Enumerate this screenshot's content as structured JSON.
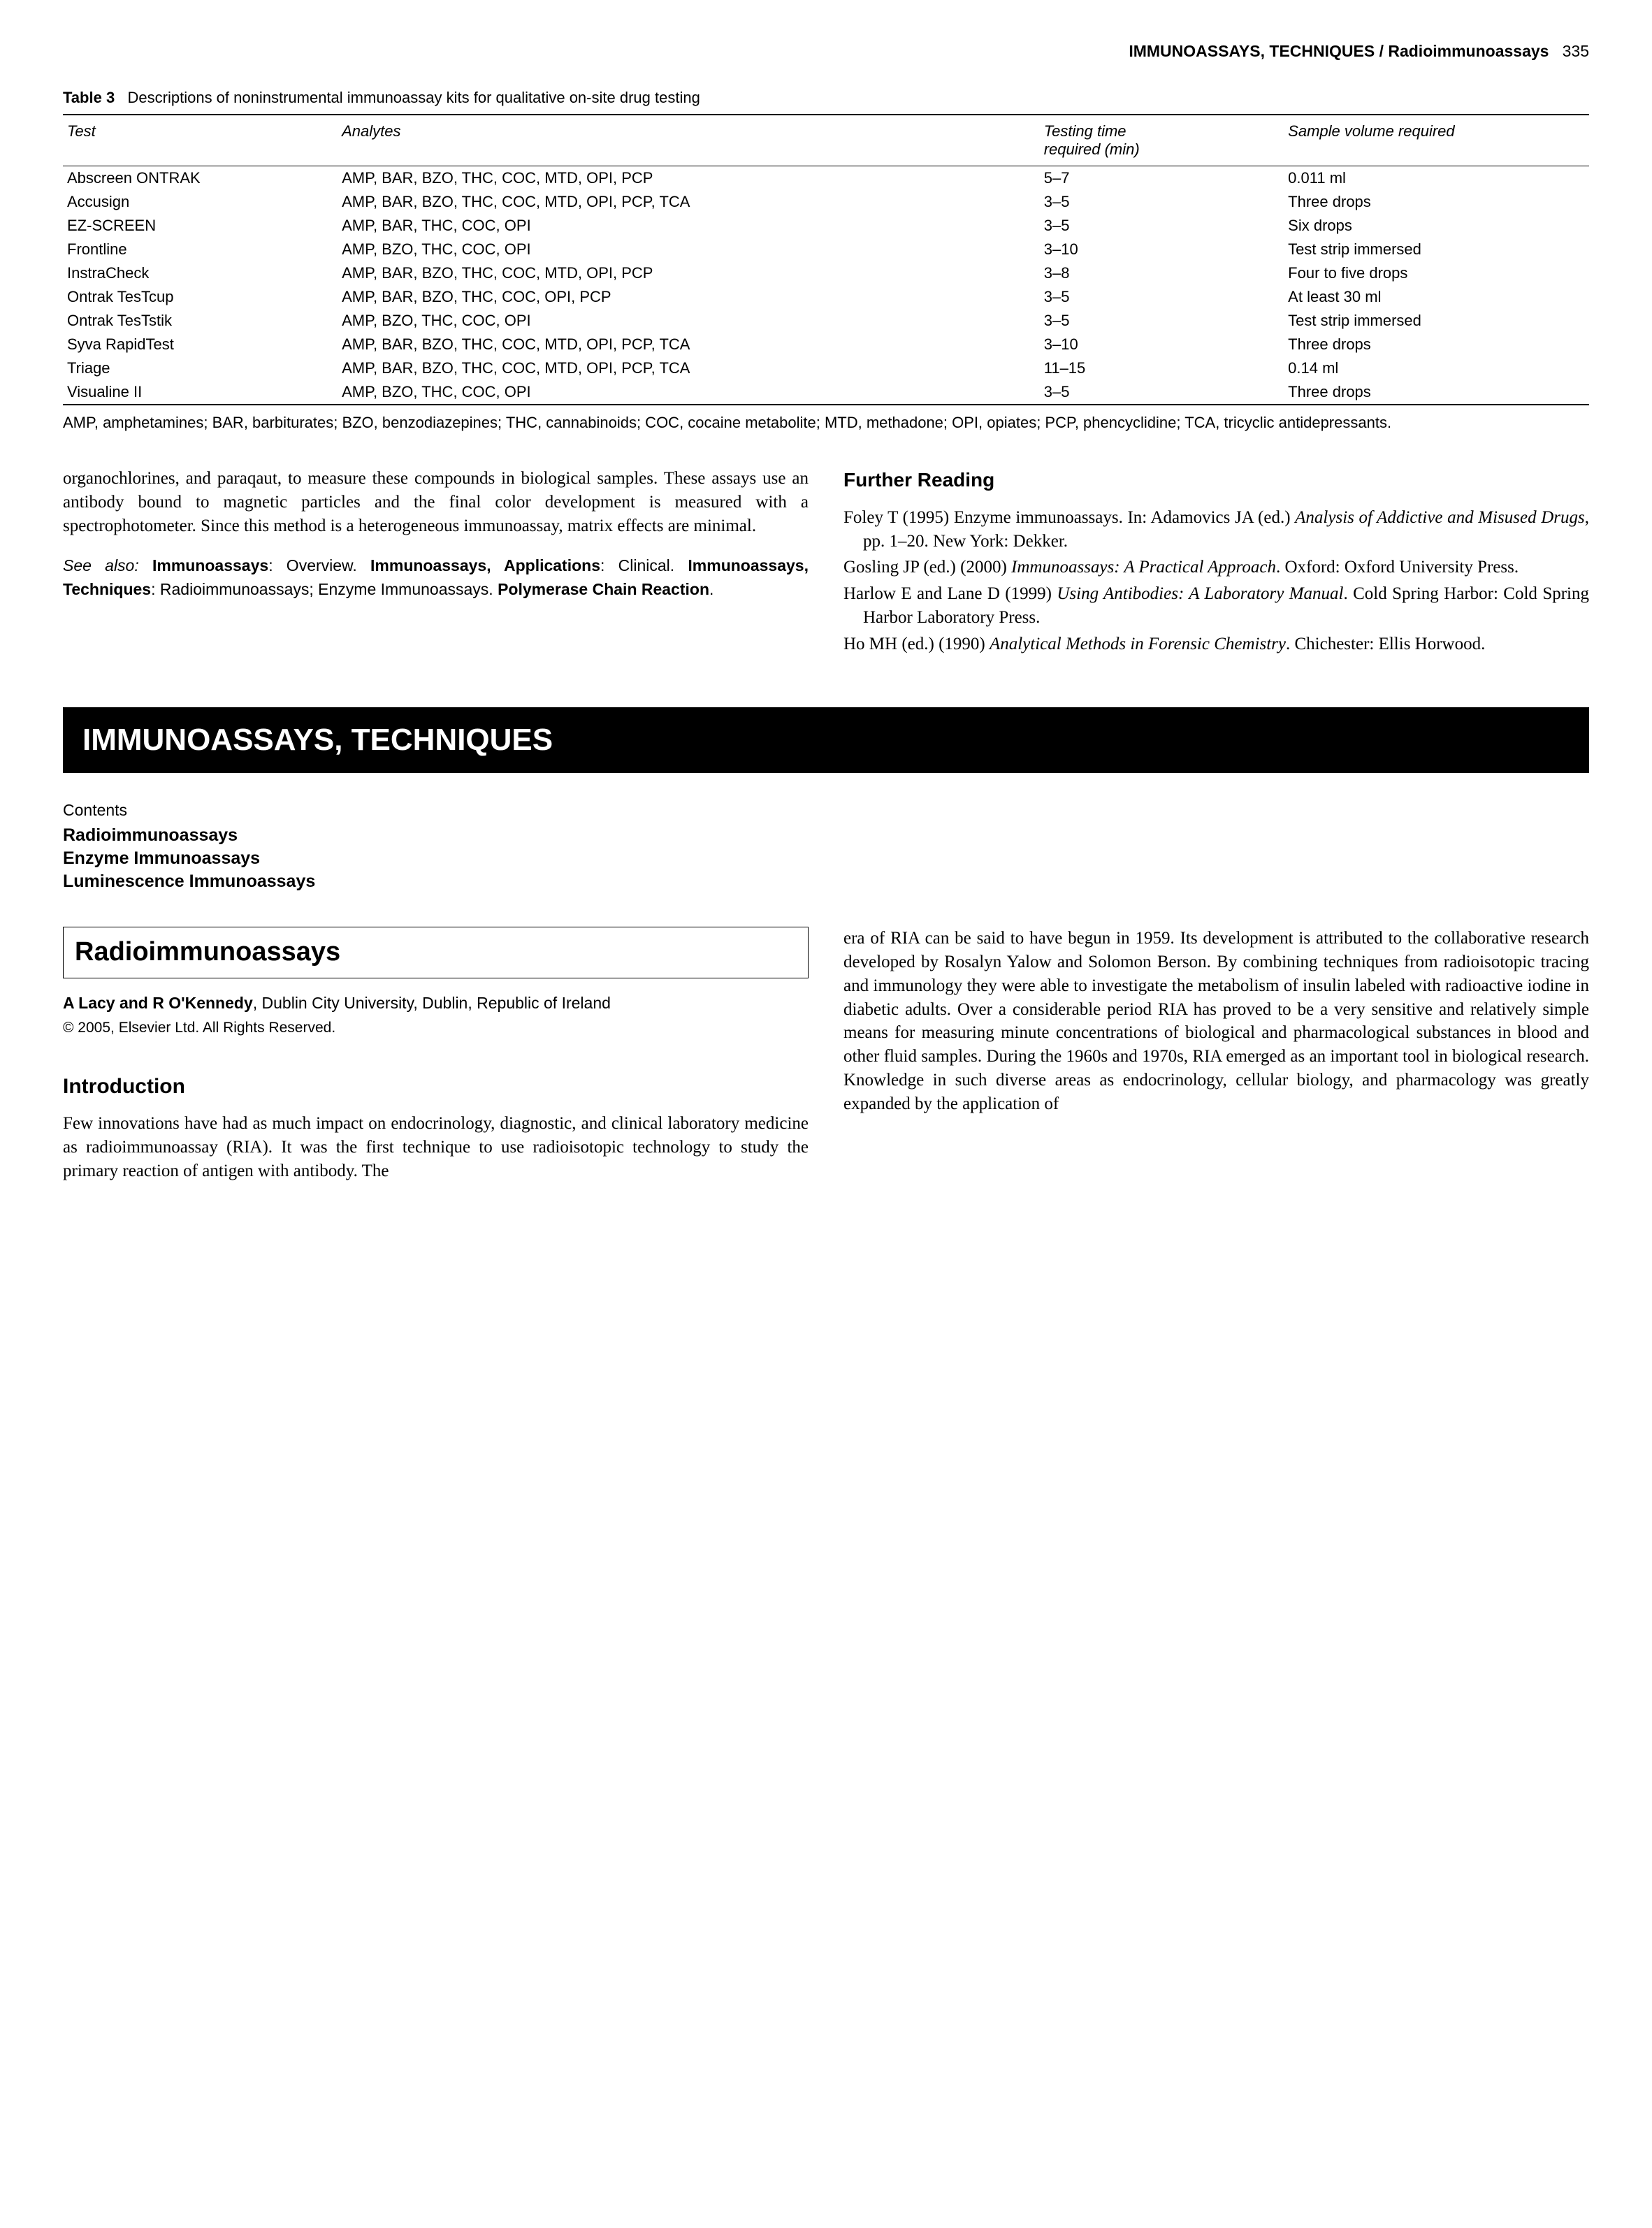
{
  "running_head": {
    "title_bold": "IMMUNOASSAYS, TECHNIQUES / Radioimmunoassays",
    "page": "335"
  },
  "table3": {
    "label": "Table 3",
    "caption": "Descriptions of noninstrumental immunoassay kits for qualitative on-site drug testing",
    "columns": [
      "Test",
      "Analytes",
      "Testing time required (min)",
      "Sample volume required"
    ],
    "col_widths": [
      "18%",
      "46%",
      "16%",
      "20%"
    ],
    "rows": [
      [
        "Abscreen ONTRAK",
        "AMP, BAR, BZO, THC, COC, MTD, OPI, PCP",
        "5–7",
        "0.011 ml"
      ],
      [
        "Accusign",
        "AMP, BAR, BZO, THC, COC, MTD, OPI, PCP, TCA",
        "3–5",
        "Three drops"
      ],
      [
        "EZ-SCREEN",
        "AMP, BAR, THC, COC, OPI",
        "3–5",
        "Six drops"
      ],
      [
        "Frontline",
        "AMP, BZO, THC, COC, OPI",
        "3–10",
        "Test strip immersed"
      ],
      [
        "InstraCheck",
        "AMP, BAR, BZO, THC, COC, MTD, OPI, PCP",
        "3–8",
        "Four to five drops"
      ],
      [
        "Ontrak TesTcup",
        "AMP, BAR, BZO, THC, COC, OPI, PCP",
        "3–5",
        "At least 30 ml"
      ],
      [
        "Ontrak TesTstik",
        "AMP, BZO, THC, COC, OPI",
        "3–5",
        "Test strip immersed"
      ],
      [
        "Syva RapidTest",
        "AMP, BAR, BZO, THC, COC, MTD, OPI, PCP, TCA",
        "3–10",
        "Three drops"
      ],
      [
        "Triage",
        "AMP, BAR, BZO, THC, COC, MTD, OPI, PCP, TCA",
        "11–15",
        "0.14 ml"
      ],
      [
        "Visualine II",
        "AMP, BZO, THC, COC, OPI",
        "3–5",
        "Three drops"
      ]
    ],
    "footnote": "AMP, amphetamines; BAR, barbiturates; BZO, benzodiazepines; THC, cannabinoids; COC, cocaine metabolite; MTD, methadone; OPI, opiates; PCP, phencyclidine; TCA, tricyclic antidepressants."
  },
  "left_col_text": "organochlorines, and paraqaut, to measure these compounds in biological samples. These assays use an antibody bound to magnetic particles and the final color development is measured with a spectrophotometer. Since this method is a heterogeneous immunoassay, matrix effects are minimal.",
  "see_also": {
    "prefix_it": "See also:",
    "body": " Immunoassays: Overview. Immunoassays, Applications: Clinical. Immunoassays, Techniques: Radioimmunoassays; Enzyme Immunoassays. Polymerase Chain Reaction."
  },
  "further_reading": {
    "heading": "Further Reading",
    "refs": [
      {
        "plain1": "Foley T (1995) Enzyme immunoassays. In: Adamovics JA (ed.) ",
        "ital": "Analysis of Addictive and Misused Drugs",
        "plain2": ", pp. 1–20. New York: Dekker."
      },
      {
        "plain1": "Gosling JP (ed.) (2000) ",
        "ital": "Immunoassays: A Practical Approach",
        "plain2": ". Oxford: Oxford University Press."
      },
      {
        "plain1": "Harlow E and Lane D (1999) ",
        "ital": "Using Antibodies: A Laboratory Manual",
        "plain2": ". Cold Spring Harbor: Cold Spring Harbor Laboratory Press."
      },
      {
        "plain1": "Ho MH (ed.) (1990) ",
        "ital": "Analytical Methods in Forensic Chemistry",
        "plain2": ". Chichester: Ellis Horwood."
      }
    ]
  },
  "banner": "IMMUNOASSAYS, TECHNIQUES",
  "contents": {
    "label": "Contents",
    "items": [
      "Radioimmunoassays",
      "Enzyme Immunoassays",
      "Luminescence Immunoassays"
    ]
  },
  "article": {
    "title": "Radioimmunoassays",
    "authors_bold": "A Lacy and R O'Kennedy",
    "authors_rest": ", Dublin City University, Dublin, Republic of Ireland",
    "copyright": "© 2005, Elsevier Ltd. All Rights Reserved.",
    "intro_heading": "Introduction",
    "intro_left": "Few innovations have had as much impact on endocrinology, diagnostic, and clinical laboratory medicine as radioimmunoassay (RIA). It was the first technique to use radioisotopic technology to study the primary reaction of antigen with antibody. The",
    "intro_right": "era of RIA can be said to have begun in 1959. Its development is attributed to the collaborative research developed by Rosalyn Yalow and Solomon Berson. By combining techniques from radioisotopic tracing and immunology they were able to investigate the metabolism of insulin labeled with radioactive iodine in diabetic adults. Over a considerable period RIA has proved to be a very sensitive and relatively simple means for measuring minute concentrations of biological and pharmacological substances in blood and other fluid samples. During the 1960s and 1970s, RIA emerged as an important tool in biological research. Knowledge in such diverse areas as endocrinology, cellular biology, and pharmacology was greatly expanded by the application of"
  }
}
